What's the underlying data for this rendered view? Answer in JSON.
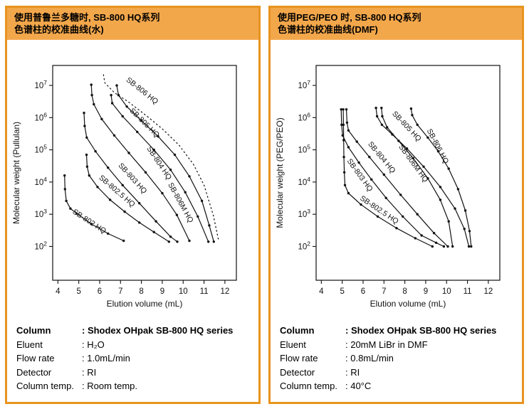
{
  "panels": [
    {
      "header": {
        "line1": "使用普鲁兰多糖时, SB-800 HQ系列",
        "line2": "色谱柱的校准曲线(水)"
      },
      "info": [
        {
          "label": "Column",
          "value": ": Shodex OHpak SB-800 HQ series"
        },
        {
          "label": "Eluent",
          "value": ": H₂O"
        },
        {
          "label": "Flow rate",
          "value": ": 1.0mL/min"
        },
        {
          "label": "Detector",
          "value": ": RI"
        },
        {
          "label": "Column temp.",
          "value": ": Room temp."
        }
      ]
    },
    {
      "header": {
        "line1": "使用PEG/PEO 时, SB-800 HQ系列",
        "line2": "色谱柱的校准曲线(DMF)"
      },
      "info": [
        {
          "label": "Column",
          "value": ": Shodex OHpak SB-800 HQ series"
        },
        {
          "label": "Eluent",
          "value": ": 20mM LiBr in DMF"
        },
        {
          "label": "Flow rate",
          "value": ": 0.8mL/min"
        },
        {
          "label": "Detector",
          "value": ": RI"
        },
        {
          "label": "Column temp.",
          "value": ": 40°C"
        }
      ]
    }
  ],
  "colors": {
    "panel_border": "#E8941F",
    "header_band": "#F3A74B",
    "curve": "#111111"
  },
  "chart_data": [
    {
      "type": "line",
      "xlabel": "Elution volume (mL)",
      "ylabel": "Molecular weight (Pullulan)",
      "x_ticks": [
        4,
        5,
        6,
        7,
        8,
        9,
        10,
        11,
        12
      ],
      "y_tick_exponents": [
        2,
        3,
        4,
        5,
        6,
        7
      ],
      "xlim": [
        3.75,
        12.55
      ],
      "ylim_exponents": [
        0.95,
        7.62
      ],
      "grid": false,
      "series": [
        {
          "name": "SB-802 HQ",
          "style": "solid",
          "markers": true,
          "label_anchor": [
            4.68,
            1100
          ],
          "points": [
            [
              4.32,
              16000
            ],
            [
              4.34,
              6000
            ],
            [
              4.4,
              2600
            ],
            [
              4.6,
              1500
            ],
            [
              4.9,
              1050
            ],
            [
              5.6,
              500
            ],
            [
              6.4,
              250
            ],
            [
              7.15,
              150
            ]
          ]
        },
        {
          "name": "SB-802.5 HQ",
          "style": "solid",
          "markers": true,
          "label_anchor": [
            5.95,
            13000
          ],
          "points": [
            [
              5.37,
              70000
            ],
            [
              5.4,
              30000
            ],
            [
              5.5,
              16000
            ],
            [
              5.9,
              7000
            ],
            [
              6.5,
              2800
            ],
            [
              7.2,
              1200
            ],
            [
              7.9,
              550
            ],
            [
              8.6,
              280
            ],
            [
              9.32,
              140
            ]
          ]
        },
        {
          "name": "SB-803 HQ",
          "style": "solid",
          "markers": true,
          "label_anchor": [
            6.88,
            32000
          ],
          "points": [
            [
              5.25,
              1400000
            ],
            [
              5.28,
              550000
            ],
            [
              5.38,
              240000
            ],
            [
              5.8,
              90000
            ],
            [
              6.4,
              28000
            ],
            [
              7.1,
              8000
            ],
            [
              7.9,
              2200
            ],
            [
              8.7,
              600
            ],
            [
              9.4,
              200
            ],
            [
              9.72,
              140
            ]
          ]
        },
        {
          "name": "SB-804 HQ",
          "style": "solid",
          "markers": true,
          "label_anchor": [
            8.25,
            110000
          ],
          "points": [
            [
              5.6,
              10500000
            ],
            [
              5.63,
              5000000
            ],
            [
              5.72,
              2600000
            ],
            [
              6.1,
              900000
            ],
            [
              6.7,
              280000
            ],
            [
              7.4,
              80000
            ],
            [
              8.2,
              20000
            ],
            [
              9.0,
              4500
            ],
            [
              9.7,
              950
            ],
            [
              10.3,
              150
            ]
          ]
        },
        {
          "name": "SB-806M HQ",
          "style": "solid",
          "markers": true,
          "label_anchor": [
            9.27,
            8500
          ],
          "points": [
            [
              6.55,
              5000000
            ],
            [
              6.6,
              2800000
            ],
            [
              7.1,
              1100000
            ],
            [
              7.8,
              360000
            ],
            [
              8.6,
              100000
            ],
            [
              9.4,
              24000
            ],
            [
              10.1,
              4800
            ],
            [
              10.7,
              850
            ],
            [
              11.21,
              140
            ]
          ]
        },
        {
          "name": "SB-805 HQ",
          "style": "solid",
          "markers": true,
          "label_anchor": [
            7.42,
            1600000
          ],
          "points": [
            [
              6.82,
              10000000
            ],
            [
              6.9,
              5000000
            ],
            [
              7.3,
              2200000
            ],
            [
              8.0,
              800000
            ],
            [
              8.8,
              260000
            ],
            [
              9.6,
              70000
            ],
            [
              10.3,
              15000
            ],
            [
              10.9,
              2600
            ],
            [
              11.25,
              450
            ],
            [
              11.47,
              140
            ]
          ]
        },
        {
          "name": "SB-806 HQ",
          "style": "dashed",
          "markers": false,
          "label_anchor": [
            7.25,
            14000000
          ],
          "points": [
            [
              6.18,
              22000000
            ],
            [
              6.25,
              12000000
            ],
            [
              6.7,
              6000000
            ],
            [
              7.4,
              3000000
            ],
            [
              8.2,
              1200000
            ],
            [
              9.0,
              450000
            ],
            [
              9.8,
              140000
            ],
            [
              10.5,
              35000
            ],
            [
              11.0,
              8000
            ],
            [
              11.45,
              900
            ],
            [
              11.7,
              150
            ]
          ]
        }
      ]
    },
    {
      "type": "line",
      "xlabel": "Elution volume (mL)",
      "ylabel": "Molecular weight (PEG/PEO)",
      "x_ticks": [
        4,
        5,
        6,
        7,
        8,
        9,
        10,
        11,
        12
      ],
      "y_tick_exponents": [
        2,
        3,
        4,
        5,
        6,
        7
      ],
      "xlim": [
        3.75,
        12.55
      ],
      "ylim_exponents": [
        0.95,
        7.62
      ],
      "grid": false,
      "series": [
        {
          "name": "SB-802.5 HQ",
          "style": "solid",
          "markers": true,
          "label_anchor": [
            5.83,
            2900
          ],
          "points": [
            [
              5.05,
              1800000
            ],
            [
              5.06,
              600000
            ],
            [
              5.07,
              200000
            ],
            [
              5.08,
              60000
            ],
            [
              5.1,
              20000
            ],
            [
              5.13,
              8000
            ],
            [
              5.3,
              4500
            ],
            [
              5.9,
              2000
            ],
            [
              6.7,
              850
            ],
            [
              7.6,
              370
            ],
            [
              8.5,
              180
            ],
            [
              9.32,
              100
            ]
          ]
        },
        {
          "name": "SB-803 HQ",
          "style": "solid",
          "markers": true,
          "label_anchor": [
            5.22,
            45000
          ],
          "points": [
            [
              4.95,
              1800000
            ],
            [
              4.97,
              600000
            ],
            [
              5.02,
              280000
            ],
            [
              5.3,
              120000
            ],
            [
              5.8,
              40000
            ],
            [
              6.4,
              12000
            ],
            [
              7.1,
              3200
            ],
            [
              7.9,
              850
            ],
            [
              8.8,
              220
            ],
            [
              9.5,
              130
            ],
            [
              9.87,
              100
            ]
          ]
        },
        {
          "name": "SB-804 HQ",
          "style": "solid",
          "markers": true,
          "label_anchor": [
            6.22,
            150000
          ],
          "points": [
            [
              5.2,
              1800000
            ],
            [
              5.23,
              700000
            ],
            [
              5.3,
              400000
            ],
            [
              5.7,
              180000
            ],
            [
              6.3,
              60000
            ],
            [
              7.0,
              17000
            ],
            [
              7.8,
              4000
            ],
            [
              8.6,
              1000
            ],
            [
              9.4,
              260
            ],
            [
              10.06,
              100
            ]
          ]
        },
        {
          "name": "SB-805 HQ",
          "style": "solid",
          "markers": true,
          "label_anchor": [
            7.38,
            1300000
          ],
          "points": [
            [
              6.62,
              2000000
            ],
            [
              6.67,
              1100000
            ],
            [
              6.9,
              600000
            ],
            [
              7.4,
              300000
            ],
            [
              8.1,
              110000
            ],
            [
              8.9,
              30000
            ],
            [
              9.7,
              7000
            ],
            [
              10.4,
              1500
            ],
            [
              10.85,
              350
            ],
            [
              11.07,
              100
            ]
          ]
        },
        {
          "name": "SB-806M HQ",
          "style": "solid",
          "markers": true,
          "label_anchor": [
            7.7,
            125000
          ],
          "points": [
            [
              6.88,
              2000000
            ],
            [
              6.92,
              1100000
            ],
            [
              7.15,
              500000
            ],
            [
              7.7,
              190000
            ],
            [
              8.4,
              55000
            ],
            [
              9.1,
              13000
            ],
            [
              9.7,
              2800
            ],
            [
              10.1,
              600
            ],
            [
              10.29,
              100
            ]
          ]
        },
        {
          "name": "SB-806 HQ",
          "style": "solid",
          "markers": true,
          "label_anchor": [
            9.05,
            400000
          ],
          "points": [
            [
              8.3,
              1900000
            ],
            [
              8.35,
              1200000
            ],
            [
              8.6,
              600000
            ],
            [
              9.1,
              240000
            ],
            [
              9.6,
              90000
            ],
            [
              10.1,
              26000
            ],
            [
              10.55,
              6000
            ],
            [
              10.9,
              1300
            ],
            [
              11.1,
              300
            ],
            [
              11.18,
              100
            ]
          ]
        }
      ]
    }
  ]
}
